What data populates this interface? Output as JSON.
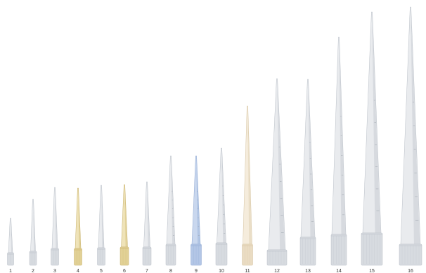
{
  "image": {
    "background": "#ffffff",
    "subject": "pipette tips arranged by size"
  },
  "tips": [
    {
      "label": "1",
      "color": "clear"
    },
    {
      "label": "2",
      "color": "clear"
    },
    {
      "label": "3",
      "color": "clear"
    },
    {
      "label": "4",
      "color": "yellow"
    },
    {
      "label": "5",
      "color": "clear"
    },
    {
      "label": "6",
      "color": "yellow"
    },
    {
      "label": "7",
      "color": "clear"
    },
    {
      "label": "8",
      "color": "clear"
    },
    {
      "label": "9",
      "color": "blue"
    },
    {
      "label": "10",
      "color": "clear"
    },
    {
      "label": "11",
      "color": "cream"
    },
    {
      "label": "12",
      "color": "clear"
    },
    {
      "label": "13",
      "color": "clear"
    },
    {
      "label": "14",
      "color": "clear"
    },
    {
      "label": "15",
      "color": "clear"
    },
    {
      "label": "16",
      "color": "clear"
    }
  ],
  "palette": {
    "clear": {
      "fill": "#e9ebee",
      "shade": "#cfd3d9",
      "collar": "#d7dbe0",
      "edge": "#b9bfc7"
    },
    "yellow": {
      "fill": "#efe3b8",
      "shade": "#dcc98b",
      "collar": "#e2d196",
      "edge": "#c7b06a"
    },
    "blue": {
      "fill": "#c9d7ee",
      "shade": "#a7bde0",
      "collar": "#b3c6e6",
      "edge": "#8fa8d2"
    },
    "cream": {
      "fill": "#f5ecdc",
      "shade": "#e6d8bd",
      "collar": "#eadcc3",
      "edge": "#d5c3a1"
    }
  }
}
